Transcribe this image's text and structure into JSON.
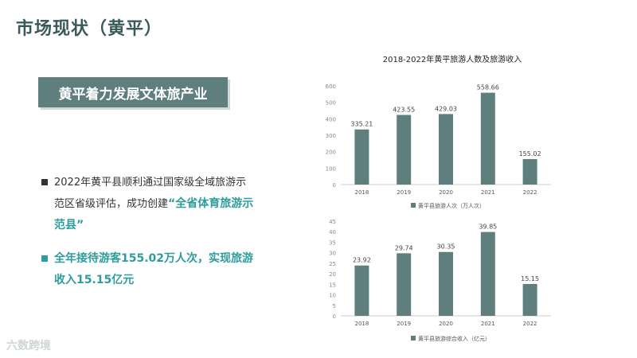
{
  "header": {
    "title": "市场现状（黄平）"
  },
  "section": {
    "title": "黄平着力发展文体旅产业"
  },
  "bullets": {
    "b1_text": "2022年黄平县顺利通过国家级全域旅游示范区省级评估，成功创建",
    "b1_highlight": "“全省体育旅游示范县”",
    "b2_text": "全年接待游客155.02万人次，实现旅游收入15.15亿元"
  },
  "watermark": "六数跨境",
  "colors": {
    "bar": "#5f7f7f",
    "accent": "#2f9c9c",
    "title": "#3a5a5a"
  },
  "chart_data": [
    {
      "type": "bar",
      "title": "2018-2022年黄平旅游人数及旅游收入",
      "categories": [
        "2018",
        "2019",
        "2020",
        "2021",
        "2022"
      ],
      "values": [
        335.21,
        423.55,
        429.03,
        558.66,
        155.02
      ],
      "value_labels": [
        "335.21",
        "423.55",
        "429.03",
        "558.66",
        "155.02"
      ],
      "legend": "黄平县旅游人次（万人次）",
      "legend_position": "bottom",
      "ylim": [
        0,
        600
      ],
      "yticks": [
        0,
        100,
        200,
        300,
        400,
        500,
        600
      ]
    },
    {
      "type": "bar",
      "categories": [
        "2018",
        "2019",
        "2020",
        "2021",
        "2022"
      ],
      "values": [
        23.92,
        29.74,
        30.35,
        39.85,
        15.15
      ],
      "value_labels": [
        "23.92",
        "29.74",
        "30.35",
        "39.85",
        "15.15"
      ],
      "legend": "黄平县旅游综合收入（亿元）",
      "legend_position": "bottom",
      "ylim": [
        0,
        45
      ],
      "yticks": [
        0,
        5,
        10,
        15,
        20,
        25,
        30,
        35,
        40,
        45
      ]
    }
  ]
}
